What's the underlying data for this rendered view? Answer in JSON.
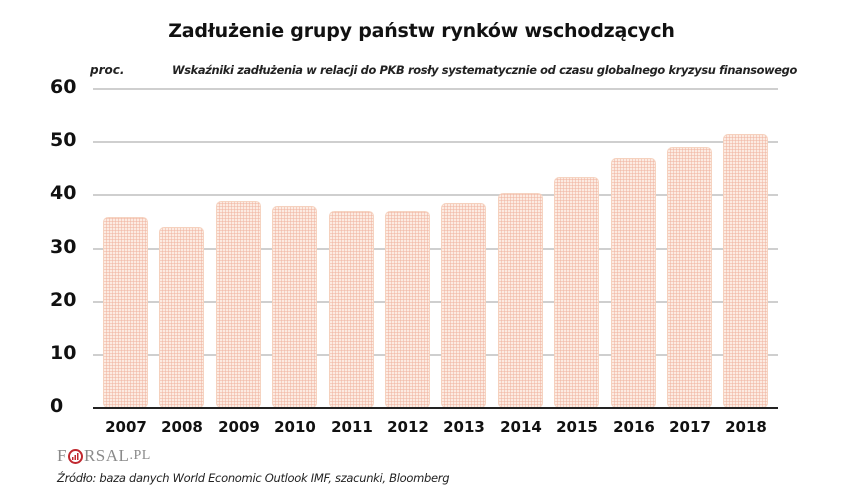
{
  "header": {
    "title": "Zadłużenie grupy państw rynków wschodzących",
    "subtitle": "Wskaźniki zadłużenia w relacji do PKB rosły systematycznie od czasu globalnego kryzysu finansowego",
    "unit_label": "proc."
  },
  "axis": {
    "y_ticks": [
      "60",
      "50",
      "40",
      "30",
      "20",
      "10",
      "0"
    ],
    "x_ticks": [
      "2007",
      "2008",
      "2009",
      "2010",
      "2011",
      "2012",
      "2013",
      "2014",
      "2015",
      "2016",
      "2017",
      "2018"
    ]
  },
  "footer": {
    "logo_prefix": "F",
    "logo_suffix": "RSAL",
    "logo_tld": ".PL",
    "source": "Źródło: baza danych World Economic Outlook IMF, szacunki, Bloomberg"
  },
  "colors": {
    "bar_fill": "#fcebe2",
    "bar_pattern": "#f0b4a0",
    "gridline": "#cfcfcf",
    "baseline": "#222222",
    "logo_accent": "#c0282f"
  },
  "chart_data": {
    "type": "bar",
    "title": "Zadłużenie grupy państw rynków wschodzących",
    "subtitle": "Wskaźniki zadłużenia w relacji do PKB rosły systematycznie od czasu globalnego kryzysu finansowego",
    "xlabel": "",
    "ylabel": "proc.",
    "categories": [
      "2007",
      "2008",
      "2009",
      "2010",
      "2011",
      "2012",
      "2013",
      "2014",
      "2015",
      "2016",
      "2017",
      "2018"
    ],
    "values": [
      36,
      34,
      39,
      38,
      37,
      37,
      38.5,
      40.5,
      43.5,
      47,
      49,
      51.5
    ],
    "ylim": [
      0,
      60
    ],
    "yticks": [
      0,
      10,
      20,
      30,
      40,
      50,
      60
    ],
    "grid": true,
    "legend": null,
    "source": "Źródło: baza danych World Economic Outlook IMF, szacunki, Bloomberg"
  }
}
